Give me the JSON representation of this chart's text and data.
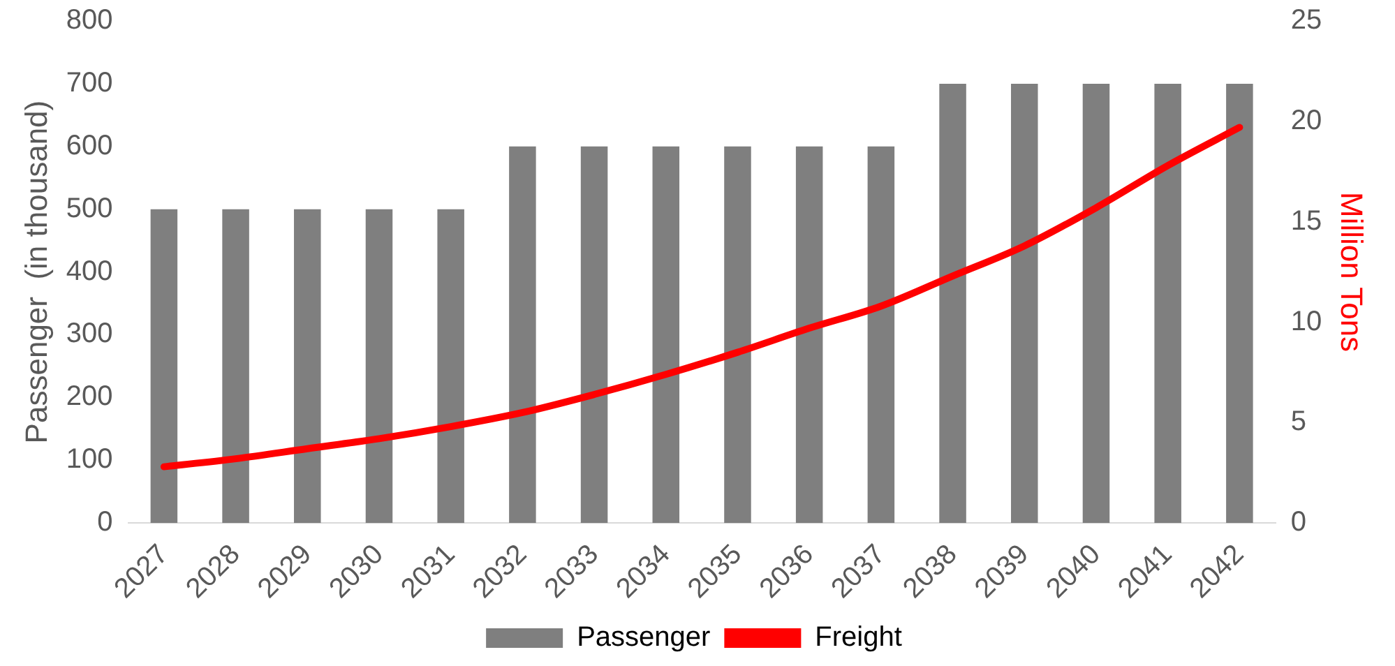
{
  "chart_data": {
    "type": "bar",
    "categories": [
      "2027",
      "2028",
      "2029",
      "2030",
      "2031",
      "2032",
      "2033",
      "2034",
      "2035",
      "2036",
      "2037",
      "2038",
      "2039",
      "2040",
      "2041",
      "2042"
    ],
    "series": [
      {
        "name": "Passenger",
        "color": "#7f7f7f",
        "values": [
          500,
          500,
          500,
          500,
          500,
          600,
          600,
          600,
          600,
          600,
          600,
          700,
          700,
          700,
          700,
          700
        ]
      },
      {
        "name": "Freight",
        "type": "line",
        "axis": "y2",
        "color": "#ff0000",
        "values": [
          2.8,
          3.2,
          3.7,
          4.2,
          4.8,
          5.5,
          6.4,
          7.4,
          8.5,
          9.7,
          10.8,
          12.3,
          13.8,
          15.7,
          17.8,
          19.7
        ]
      }
    ],
    "ylabel": "Passenger  (in thousand)",
    "y2label": "Million Tons",
    "ylim": [
      0,
      800
    ],
    "yticks": [
      0,
      100,
      200,
      300,
      400,
      500,
      600,
      700,
      800
    ],
    "y2lim": [
      0,
      25
    ],
    "y2ticks": [
      0,
      5,
      10,
      15,
      20,
      25
    ],
    "grid": false,
    "legend": "bottom",
    "marker": "none",
    "line_style": "solid"
  }
}
